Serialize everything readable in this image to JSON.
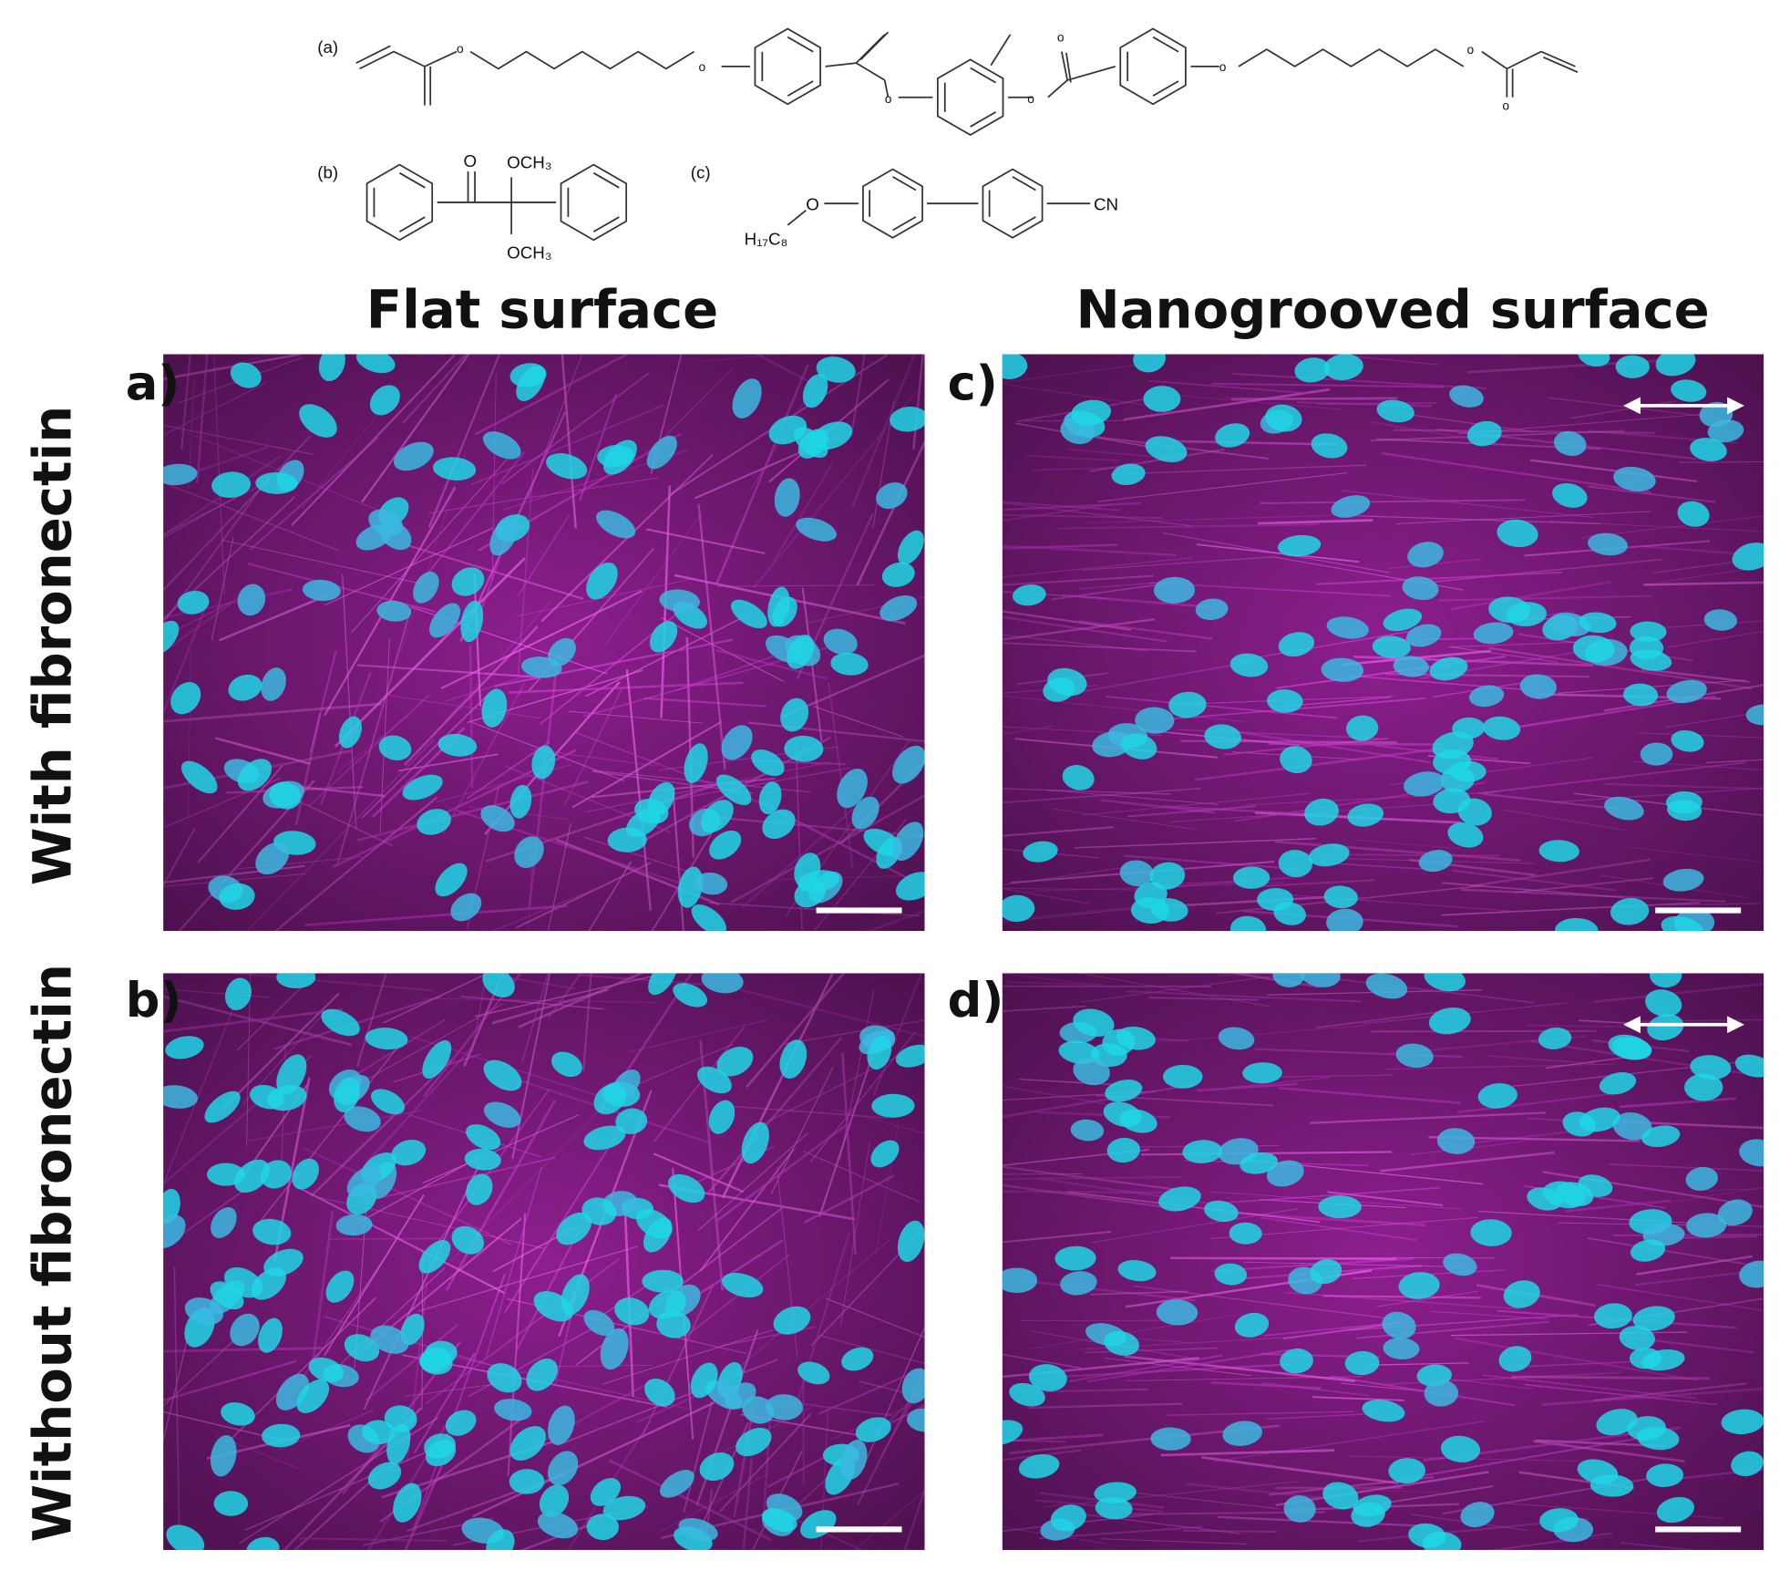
{
  "header": {
    "structure_labels": [
      "(a)",
      "(b)",
      "(c)"
    ],
    "structure_a": {
      "atoms": [
        "o",
        "o",
        "o",
        "o",
        "o",
        "o",
        "o",
        "o"
      ]
    },
    "structure_b": {
      "atoms": [
        "O",
        "OCH₃",
        "OCH₃"
      ]
    },
    "structure_c": {
      "atoms": [
        "H₁₇C₈",
        "O",
        "CN"
      ]
    }
  },
  "columns": [
    "Flat surface",
    "Nanogrooved surface"
  ],
  "rows": [
    "With fibronectin",
    "Without fibronectin"
  ],
  "panels": [
    {
      "label": "a)"
    },
    {
      "label": "c)"
    },
    {
      "label": "b)"
    },
    {
      "label": "d)"
    }
  ]
}
